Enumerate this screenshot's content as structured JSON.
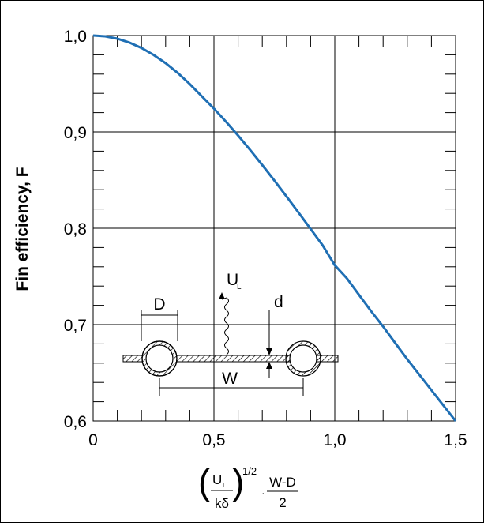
{
  "chart_data": {
    "type": "line",
    "ylabel": "Fin efficiency, F",
    "xlabel": {
      "ul": "U",
      "ul_sub": "L",
      "kdelta": "kδ",
      "exponent": "1/2",
      "wd": "W-D",
      "two": "2"
    },
    "xlim": [
      0,
      1.5
    ],
    "ylim": [
      0.6,
      1.0
    ],
    "x_ticks": [
      "0",
      "0,5",
      "1,0",
      "1,5"
    ],
    "y_ticks": [
      "0,6",
      "0,7",
      "0,8",
      "0,9",
      "1,0"
    ],
    "grid": true,
    "series": [
      {
        "color": "#1f6fb4",
        "x": [
          0,
          0.05,
          0.1,
          0.15,
          0.2,
          0.25,
          0.3,
          0.35,
          0.4,
          0.45,
          0.5,
          0.55,
          0.6,
          0.65,
          0.7,
          0.75,
          0.8,
          0.85,
          0.9,
          0.95,
          1.0,
          1.05,
          1.1,
          1.15,
          1.2,
          1.25,
          1.3,
          1.35,
          1.4,
          1.45,
          1.5
        ],
        "y": [
          1.0,
          0.9992,
          0.9967,
          0.9927,
          0.9871,
          0.9799,
          0.9713,
          0.9612,
          0.9497,
          0.9369,
          0.9242,
          0.9106,
          0.8962,
          0.8812,
          0.8656,
          0.8495,
          0.833,
          0.8163,
          0.7993,
          0.7822,
          0.7616,
          0.748,
          0.731,
          0.714,
          0.698,
          0.681,
          0.664,
          0.648,
          0.632,
          0.616,
          0.6
        ]
      }
    ]
  },
  "inset": {
    "label_D": "D",
    "label_UL": "U",
    "label_UL_sub": "L",
    "label_d": "d",
    "label_W": "W"
  }
}
